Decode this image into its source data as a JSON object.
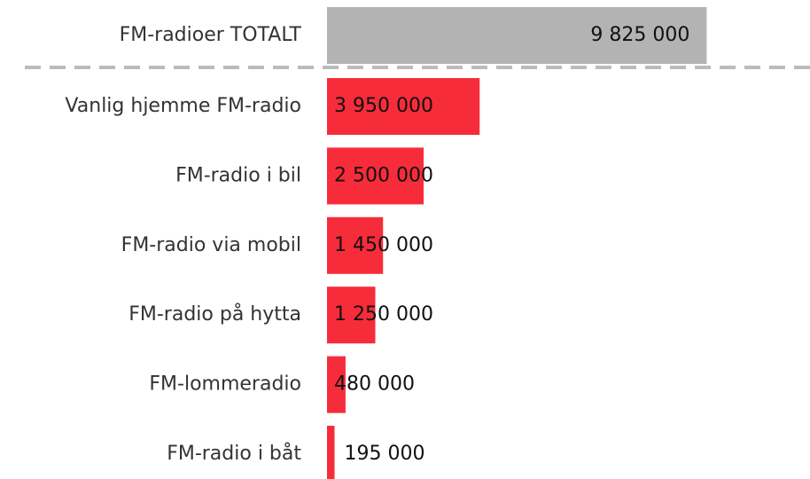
{
  "chart_data": {
    "type": "bar",
    "categories": [
      "FM-radioer TOTALT",
      "Vanlig hjemme FM-radio",
      "FM-radio i bil",
      "FM-radio via mobil",
      "FM-radio på hytta",
      "FM-lommeradio",
      "FM-radio i båt"
    ],
    "values": [
      9825000,
      3950000,
      2500000,
      1450000,
      1250000,
      480000,
      195000
    ],
    "value_labels": [
      "9 825 000",
      "3 950 000",
      "2 500 000",
      "1 450 000",
      "1 250 000",
      "480 000",
      "195 000"
    ],
    "colors": [
      "#b3b3b3",
      "#f72c3a",
      "#f72c3a",
      "#f72c3a",
      "#f72c3a",
      "#f72c3a",
      "#f72c3a"
    ],
    "xlim": [
      0,
      12500000
    ]
  }
}
